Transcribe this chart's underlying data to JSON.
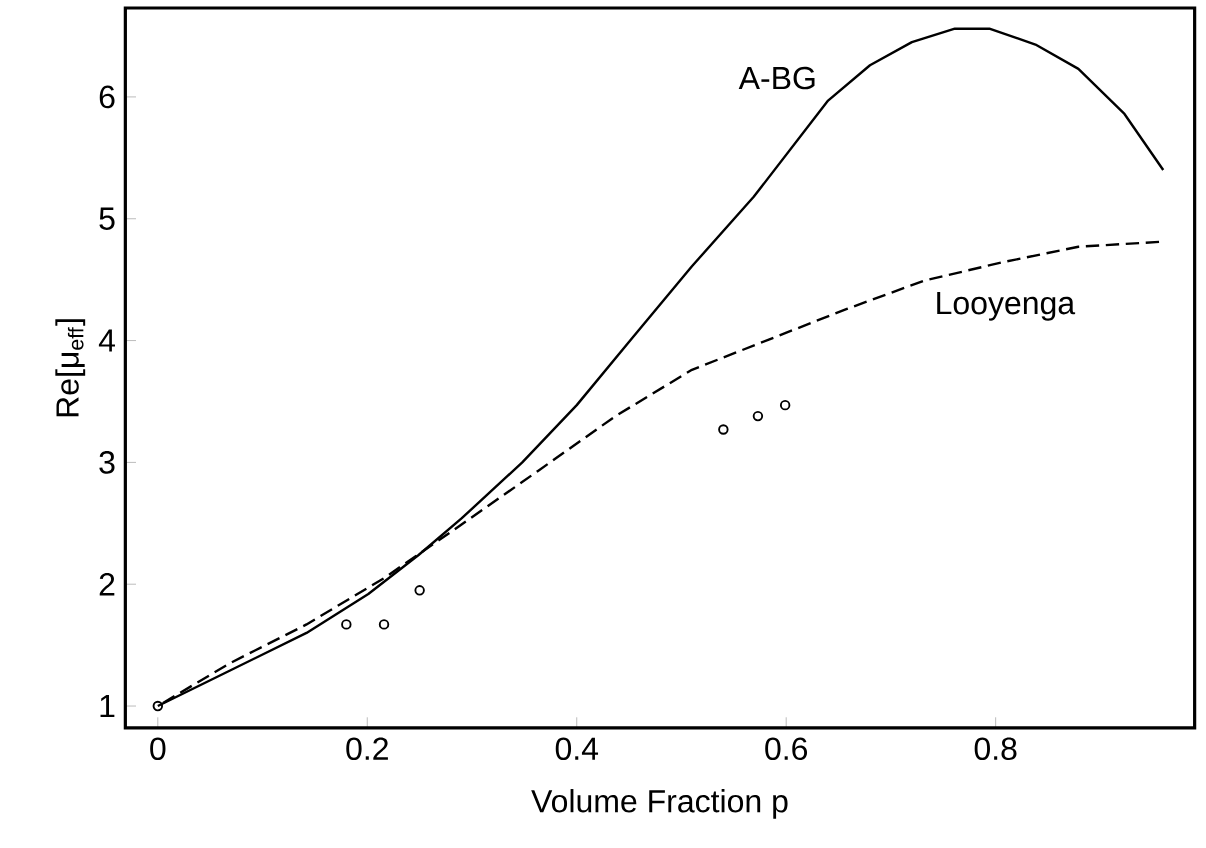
{
  "chart_data": {
    "type": "line",
    "xlabel": "Volume Fraction p",
    "ylabel": "Re[μ$_{eff}$]",
    "xlim": [
      -0.031,
      0.99
    ],
    "ylim": [
      0.82,
      6.73
    ],
    "xticks": [
      0,
      0.2,
      0.4,
      0.6,
      0.8
    ],
    "yticks": [
      1,
      2,
      3,
      4,
      5,
      6
    ],
    "grid": false,
    "legend": false,
    "series": [
      {
        "name": "A-BG",
        "color": "#000000",
        "line_style": "solid",
        "marker": "none",
        "x": [
          0,
          0.0685,
          0.142,
          0.201,
          0.249,
          0.29,
          0.348,
          0.4,
          0.452,
          0.51,
          0.569,
          0.64,
          0.68,
          0.72,
          0.761,
          0.794,
          0.838,
          0.879,
          0.923,
          0.96
        ],
        "values": [
          1,
          1.29,
          1.6,
          1.92,
          2.24,
          2.54,
          3.0,
          3.47,
          4.01,
          4.61,
          5.18,
          5.97,
          6.26,
          6.45,
          6.56,
          6.56,
          6.43,
          6.23,
          5.86,
          5.4
        ]
      },
      {
        "name": "Looyenga",
        "color": "#000000",
        "line_style": "dashed",
        "marker": "none",
        "x": [
          0,
          0.0685,
          0.142,
          0.216,
          0.29,
          0.363,
          0.437,
          0.51,
          0.584,
          0.658,
          0.731,
          0.805,
          0.879,
          0.956
        ],
        "values": [
          1,
          1.35,
          1.67,
          2.05,
          2.49,
          2.93,
          3.38,
          3.76,
          4.01,
          4.26,
          4.49,
          4.64,
          4.77,
          4.81
        ]
      },
      {
        "type": "scatter",
        "color": "#000000",
        "marker": "circle",
        "x": [
          0,
          0.18,
          0.216,
          0.25,
          0.54,
          0.573,
          0.599
        ],
        "values": [
          1,
          1.67,
          1.67,
          1.95,
          3.27,
          3.38,
          3.47
        ]
      }
    ]
  }
}
